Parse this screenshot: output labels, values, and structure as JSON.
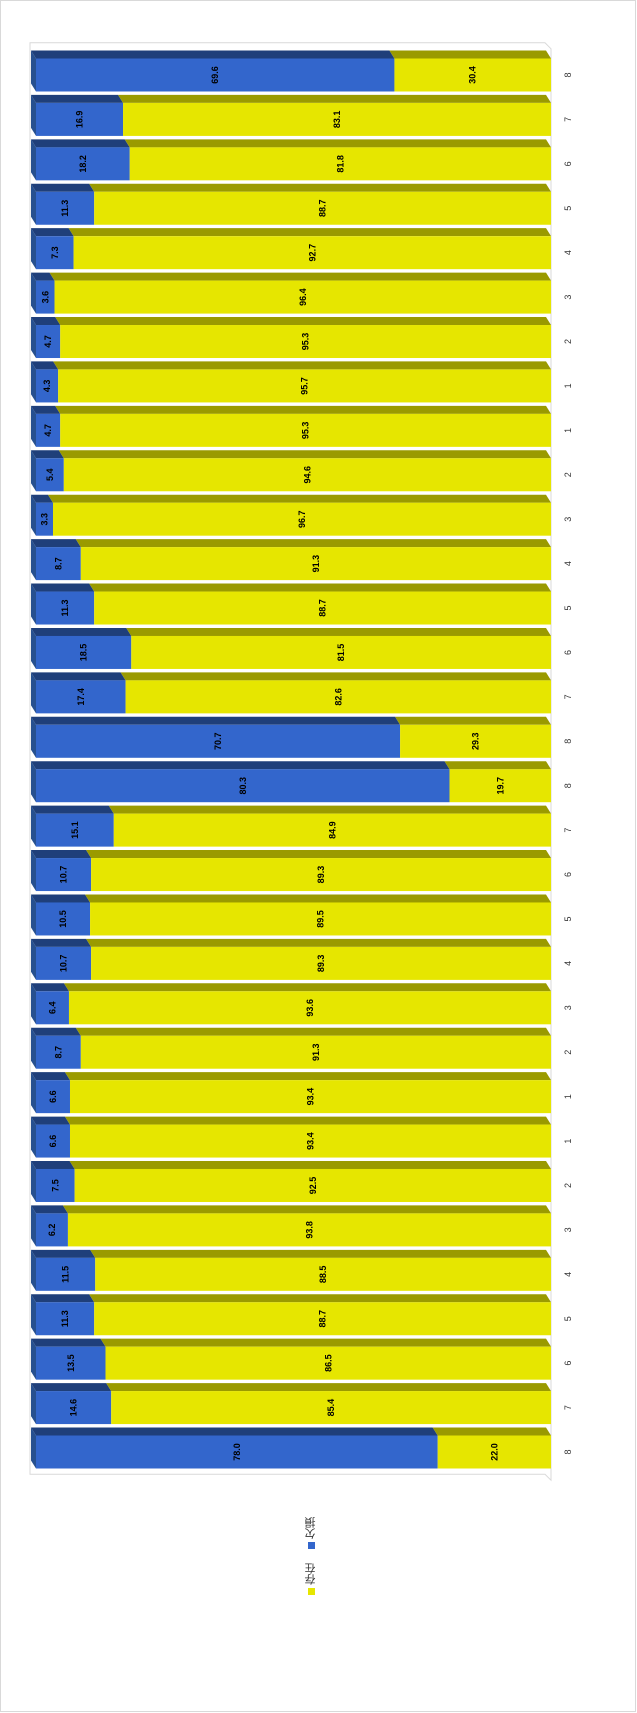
{
  "chart_data": {
    "type": "bar",
    "stacked": true,
    "percent": true,
    "orientation": "horizontal-rotated",
    "categories": [
      "8",
      "7",
      "6",
      "5",
      "4",
      "3",
      "2",
      "1",
      "1",
      "2",
      "3",
      "4",
      "5",
      "6",
      "7",
      "8",
      "8",
      "7",
      "6",
      "5",
      "4",
      "3",
      "2",
      "1",
      "1",
      "2",
      "3",
      "4",
      "5",
      "6",
      "7",
      "8"
    ],
    "series": [
      {
        "name": "欠損",
        "color": "#3366cc",
        "values": [
          78.0,
          14.6,
          13.5,
          11.3,
          11.5,
          6.2,
          7.5,
          6.6,
          6.6,
          8.7,
          6.4,
          10.7,
          10.5,
          10.7,
          15.1,
          80.3,
          70.7,
          17.4,
          18.5,
          11.3,
          8.7,
          3.3,
          5.4,
          4.7,
          4.3,
          4.7,
          3.6,
          7.3,
          11.3,
          18.2,
          16.9,
          69.6
        ],
        "labels": [
          "78.0",
          "14.6",
          "13.5",
          "11.3",
          "11.5",
          "6.2",
          "7.5",
          "6.6",
          "6.6",
          "8.7",
          "6.4",
          "10.7",
          "10.5",
          "10.7",
          "15.1",
          "80.3",
          "70.7",
          "17.4",
          "18.5",
          "11.3",
          "8.7",
          "3.3",
          "5.4",
          "4.7",
          "4.3",
          "4.7",
          "3.6",
          "7.3",
          "11.3",
          "18.2",
          "16.9",
          "69.6"
        ]
      },
      {
        "name": "存在",
        "color": "#e6e600",
        "values": [
          22.0,
          85.4,
          86.5,
          88.7,
          88.5,
          93.8,
          92.5,
          93.4,
          93.4,
          91.3,
          93.6,
          89.3,
          89.5,
          89.3,
          84.9,
          19.7,
          29.3,
          82.6,
          81.5,
          88.7,
          91.3,
          96.7,
          94.6,
          95.3,
          95.7,
          95.3,
          96.4,
          92.7,
          88.7,
          81.8,
          83.1,
          30.4
        ],
        "labels": [
          "22.0",
          "85.4",
          "86.5",
          "88.7",
          "88.5",
          "93.8",
          "92.5",
          "93.4",
          "93.4",
          "91.3",
          "93.6",
          "89.3",
          "89.5",
          "89.3",
          "84.9",
          "19.7",
          "29.3",
          "82.6",
          "81.5",
          "88.7",
          "91.3",
          "96.7",
          "94.6",
          "95.3",
          "95.7",
          "95.3",
          "96.4",
          "92.7",
          "88.7",
          "81.8",
          "83.1",
          "30.4"
        ]
      }
    ],
    "ylim": [
      0,
      100
    ],
    "grid": false,
    "legend": "bottom-left"
  }
}
